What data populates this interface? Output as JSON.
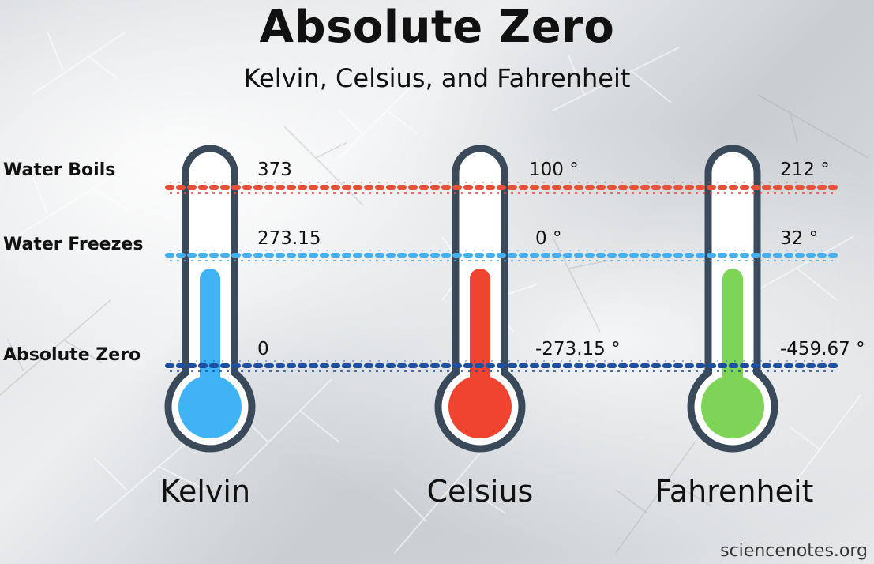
{
  "title": "Absolute Zero",
  "subtitle": "Kelvin, Celsius, and Fahrenheit",
  "rows": {
    "boils": "Water Boils",
    "freezes": "Water Freezes",
    "zero": "Absolute Zero"
  },
  "scales": [
    {
      "name": "Kelvin",
      "boils": "373",
      "freezes": "273.15",
      "zero": "0",
      "color": "#3fb3f3"
    },
    {
      "name": "Celsius",
      "boils": "100 °",
      "freezes": "0 °",
      "zero": "-273.15 °",
      "color": "#ef4530"
    },
    {
      "name": "Fahrenheit",
      "boils": "212 °",
      "freezes": "32 °",
      "zero": "-459.67 °",
      "color": "#7dd456"
    }
  ],
  "line_colors": {
    "boils": "#e8503a",
    "freezes": "#45b0ef",
    "zero": "#1d4fa3"
  },
  "outline_color": "#3a4a5a",
  "credit": "sciencenotes.org"
}
